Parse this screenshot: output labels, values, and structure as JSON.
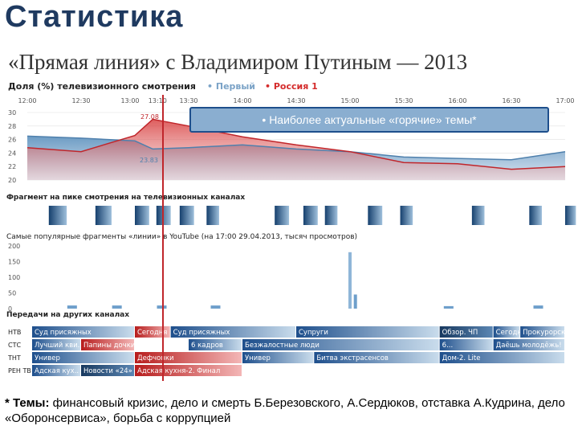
{
  "page": {
    "title": "Статистика",
    "subtitle": "«Прямая линия» с Владимиром Путиным — 2013",
    "footnote_lead": "* Темы:",
    "footnote_text": " финансовый кризис, дело и смерть Б.Березовского, А.Сердюков, отставка А.Кудрина, дело «Оборонсервиса», борьба с коррупцией",
    "callout": "• Наиболее актуальные «горячие» темы*"
  },
  "colors": {
    "pervy": "#7ba3c7",
    "russia1": "#d42b2b",
    "accent_line": "#c0262b"
  },
  "chart_data": [
    {
      "type": "area",
      "title": "Доля (%) телевизионного смотрения",
      "legend": [
        "• Первый",
        "• Россия 1"
      ],
      "x": [
        "12:00",
        "12:30",
        "13:00",
        "13:10",
        "13:30",
        "14:00",
        "14:30",
        "15:00",
        "15:30",
        "16:00",
        "16:30",
        "17:00"
      ],
      "x_ticks": [
        "12:00",
        "12:30",
        "13:00",
        "13:10",
        "13:30",
        "14:00",
        "14:30",
        "15:00",
        "15:30",
        "16:00",
        "16:30",
        "17:00"
      ],
      "y_ticks": [
        "30",
        "28",
        "26",
        "24",
        "22",
        "20"
      ],
      "ylim": [
        20,
        30
      ],
      "series": [
        {
          "name": "Первый",
          "values": [
            26.5,
            26.2,
            25.8,
            24.6,
            24.8,
            25.2,
            24.6,
            24.2,
            23.4,
            23.2,
            23.0,
            24.2
          ]
        },
        {
          "name": "Россия 1",
          "values": [
            24.8,
            24.2,
            26.6,
            29.0,
            28.0,
            26.4,
            25.2,
            24.2,
            22.6,
            22.4,
            21.6,
            22.0
          ]
        }
      ],
      "annotations": [
        "27.08",
        "23.83"
      ]
    },
    {
      "type": "bar",
      "title": "Фрагмент на пике смотрения на телевизионных каналах",
      "intervals": [
        [
          "12:12",
          "12:22"
        ],
        [
          "12:38",
          "12:47"
        ],
        [
          "13:00",
          "13:08"
        ],
        [
          "13:12",
          "13:20"
        ],
        [
          "13:25",
          "13:33"
        ],
        [
          "13:40",
          "13:47"
        ],
        [
          "14:18",
          "14:26"
        ],
        [
          "14:34",
          "14:42"
        ],
        [
          "14:46",
          "14:53"
        ],
        [
          "15:10",
          "15:18"
        ],
        [
          "15:28",
          "15:35"
        ],
        [
          "16:08",
          "16:15"
        ],
        [
          "16:40",
          "16:47"
        ],
        [
          "17:00",
          "17:06"
        ]
      ]
    },
    {
      "type": "bar",
      "title": "Самые популярные фрагменты «линии» в YouTube (на 17:00 29.04.2013, тысяч просмотров)",
      "y_ticks": [
        "200",
        "150",
        "100",
        "50",
        "0"
      ],
      "ylim": [
        0,
        200
      ],
      "x": [
        "12:25",
        "12:50",
        "13:15",
        "13:45",
        "15:00",
        "15:03",
        "15:55",
        "16:45"
      ],
      "values": [
        10,
        10,
        10,
        10,
        180,
        45,
        8,
        10
      ]
    },
    {
      "type": "table",
      "title": "Передачи на других каналах",
      "channels": [
        {
          "name": "НТВ",
          "programs": [
            {
              "label": "Суд присяжных",
              "start": "12:00",
              "end": "13:00",
              "color": "blue"
            },
            {
              "label": "Сегодня",
              "start": "13:00",
              "end": "13:20",
              "color": "red"
            },
            {
              "label": "Суд присяжных",
              "start": "13:20",
              "end": "14:30",
              "color": "blue"
            },
            {
              "label": "Супруги",
              "start": "14:30",
              "end": "15:50",
              "color": "blue"
            },
            {
              "label": "Обзор. ЧП",
              "start": "15:50",
              "end": "16:20",
              "color": "darkblue"
            },
            {
              "label": "Сегодня",
              "start": "16:20",
              "end": "16:35",
              "color": "blue"
            },
            {
              "label": "Прокурорская",
              "start": "16:35",
              "end": "17:00",
              "color": "blue"
            }
          ]
        },
        {
          "name": "СТС",
          "programs": [
            {
              "label": "Лучший кви..",
              "start": "12:00",
              "end": "12:30",
              "color": "blue"
            },
            {
              "label": "Папины дочки",
              "start": "12:30",
              "end": "13:00",
              "color": "red"
            },
            {
              "label": "6 кадров",
              "start": "13:30",
              "end": "14:00",
              "color": "blue"
            },
            {
              "label": "Безжалостные люди",
              "start": "14:00",
              "end": "15:50",
              "color": "blue"
            },
            {
              "label": "6...",
              "start": "15:50",
              "end": "16:20",
              "color": "blue"
            },
            {
              "label": "Даёшь молодёжь!",
              "start": "16:20",
              "end": "17:00",
              "color": "blue"
            }
          ]
        },
        {
          "name": "ТНТ",
          "programs": [
            {
              "label": "Универ",
              "start": "12:00",
              "end": "13:00",
              "color": "blue"
            },
            {
              "label": "Дефчонки",
              "start": "13:00",
              "end": "14:00",
              "color": "red"
            },
            {
              "label": "Универ",
              "start": "14:00",
              "end": "14:40",
              "color": "blue"
            },
            {
              "label": "Битва экстрасенсов",
              "start": "14:40",
              "end": "15:50",
              "color": "blue"
            },
            {
              "label": "Дом-2. Lite",
              "start": "15:50",
              "end": "17:00",
              "color": "blue"
            }
          ]
        },
        {
          "name": "РЕН ТВ",
          "programs": [
            {
              "label": "Адская кух..",
              "start": "12:00",
              "end": "12:30",
              "color": "blue"
            },
            {
              "label": "Новости «24»",
              "start": "12:30",
              "end": "13:00",
              "color": "darkblue"
            },
            {
              "label": "Адская кухня-2. Финал",
              "start": "13:00",
              "end": "14:00",
              "color": "red"
            }
          ]
        }
      ]
    }
  ]
}
